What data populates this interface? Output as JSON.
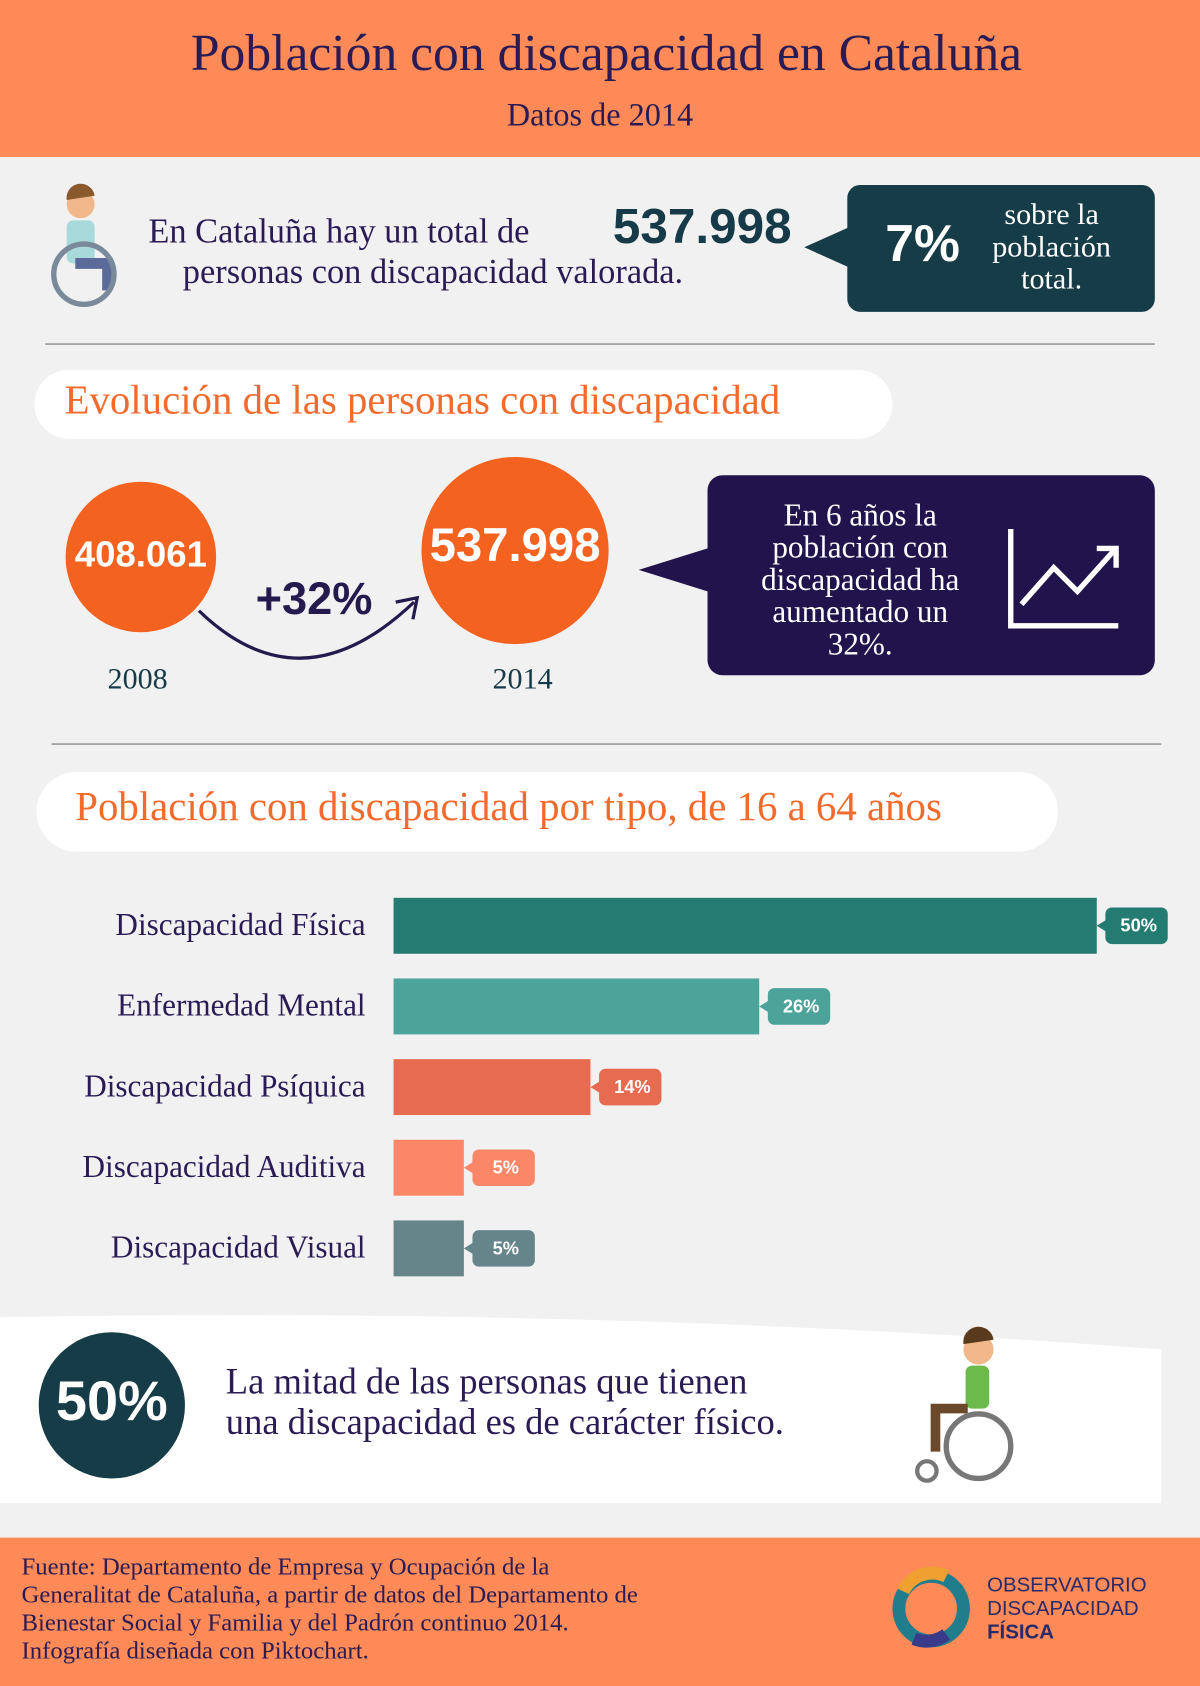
{
  "header": {
    "title": "Población con discapacidad en Cataluña",
    "subtitle": "Datos de 2014"
  },
  "summary": {
    "text_before": "En Cataluña hay un total de",
    "total": "537.998",
    "text_after": "personas con discapacidad valorada.",
    "share": "7%",
    "share_note": [
      "sobre la",
      "población",
      "total."
    ]
  },
  "evolution": {
    "title": "Evolución de las personas con discapacidad",
    "points": [
      {
        "value": "408.061",
        "year": "2008"
      },
      {
        "value": "537.998",
        "year": "2014"
      }
    ],
    "growth": "+32%",
    "callout": [
      "En 6 años la",
      "población con",
      "discapacidad ha",
      "aumentado un",
      "32%."
    ]
  },
  "chart_data": {
    "type": "bar",
    "title": "Población con discapacidad por tipo, de 16 a 64 años",
    "categories": [
      "Discapacidad Física",
      "Enfermedad Mental",
      "Discapacidad Psíquica",
      "Discapacidad Auditiva",
      "Discapacidad Visual"
    ],
    "values": [
      50,
      26,
      14,
      5,
      5
    ],
    "value_labels": [
      "50%",
      "26%",
      "14%",
      "5%",
      "5%"
    ],
    "colors": [
      "#237b71",
      "#4ba39a",
      "#e66b50",
      "#fb8668",
      "#66858a"
    ]
  },
  "conclusion": {
    "value": "50%",
    "text": [
      "La mitad de las personas que tienen",
      "una discapacidad es de carácter físico."
    ]
  },
  "footer": {
    "source": [
      "Fuente: Departamento de Empresa y Ocupación de la",
      "Generalitat de Cataluña, a partir de datos del Departamento de",
      "Bienestar Social y Familia y del Padrón continuo 2014.",
      "Infografía diseñada con Piktochart."
    ],
    "logo": [
      "OBSERVATORIO",
      "DISCAPACIDAD",
      "FÍSICA"
    ]
  }
}
